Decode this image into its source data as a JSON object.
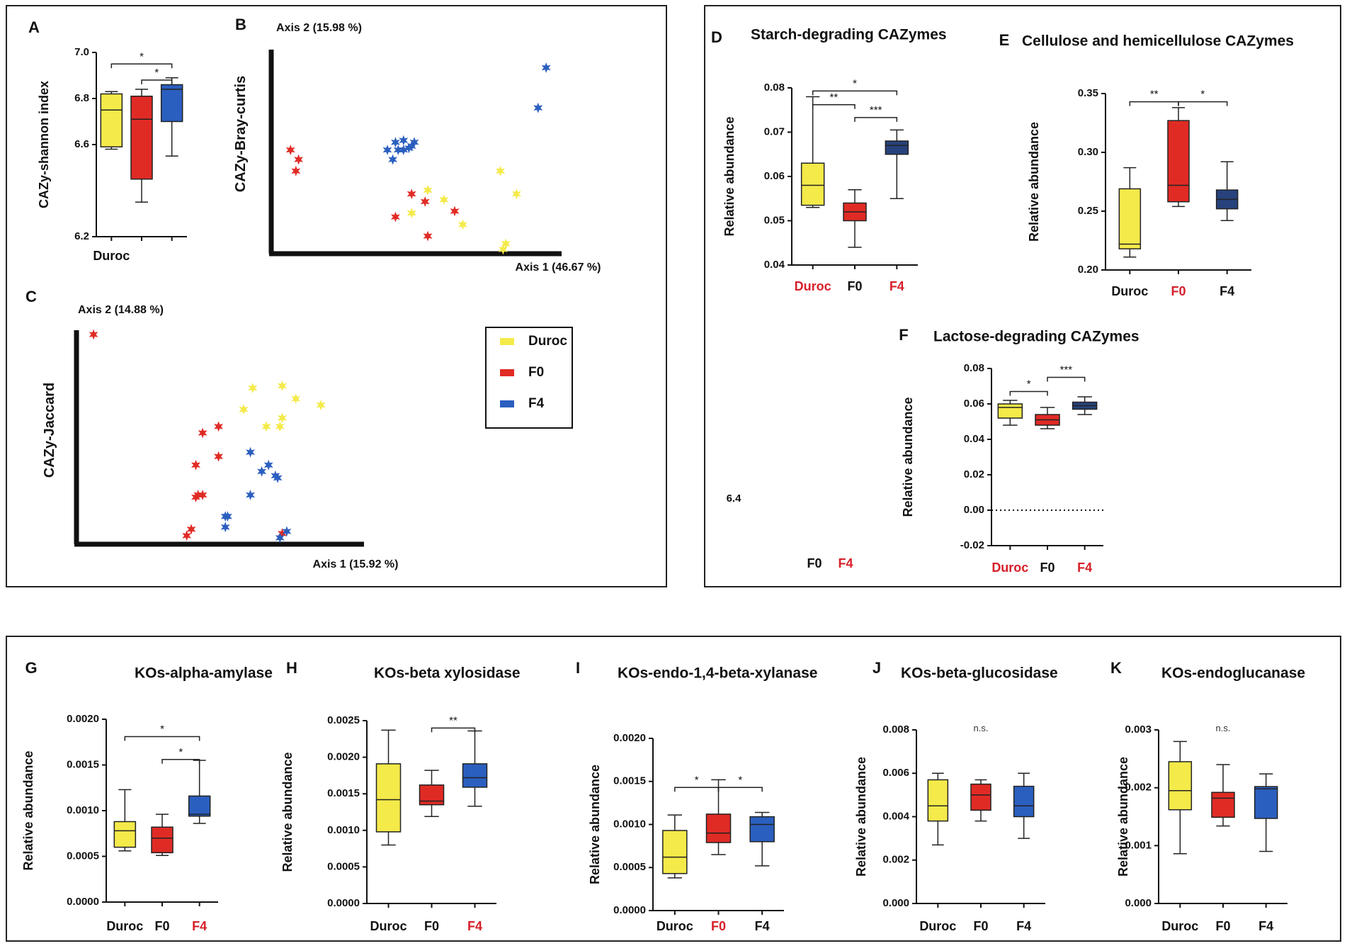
{
  "figure": {
    "group_names": [
      "Duroc",
      "F0",
      "F4"
    ],
    "colors": {
      "Duroc": "#f4ea4a",
      "F0": "#e02b25",
      "F4": "#2b5fbf",
      "F4_dark": "#27427c",
      "highlight": "#d71f2a",
      "axis": "#111111"
    },
    "stray_tick": "6.4",
    "stray_labels": [
      "F0",
      "F4"
    ]
  },
  "chart_data": [
    {
      "id": "A",
      "type": "box",
      "title": "",
      "xlabel": "",
      "ylabel": "CAZy-shannon index",
      "categories": [
        "Duroc",
        "",
        ""
      ],
      "category_colors": [
        "Duroc",
        "F0",
        "F4"
      ],
      "ylim": [
        6.2,
        7.0
      ],
      "ticks": [
        "6.2",
        "6.6",
        "6.8",
        "7.0"
      ],
      "boxes": [
        {
          "min": 6.58,
          "q1": 6.59,
          "median": 6.75,
          "q3": 6.82,
          "max": 6.83
        },
        {
          "min": 6.35,
          "q1": 6.45,
          "median": 6.71,
          "q3": 6.81,
          "max": 6.84
        },
        {
          "min": 6.55,
          "q1": 6.7,
          "median": 6.84,
          "q3": 6.86,
          "max": 6.89
        }
      ],
      "sig": [
        {
          "from": 0,
          "to": 2,
          "label": "*"
        },
        {
          "from": 1,
          "to": 2,
          "label": "*"
        }
      ]
    },
    {
      "id": "B",
      "type": "scatter",
      "ylabel": "CAZy-Bray-curtis",
      "xaxis_label": "Axis 1 (46.67 %)",
      "yaxis_label": "Axis 2 (15.98 %)",
      "xlim": [
        0,
        100
      ],
      "ylim": [
        0,
        100
      ],
      "series": [
        {
          "name": "Duroc",
          "points": [
            [
              88,
              29
            ],
            [
              82,
              41
            ],
            [
              61,
              26
            ],
            [
              55,
              31
            ],
            [
              68,
              13
            ],
            [
              49,
              19
            ],
            [
              83,
              0
            ],
            [
              84,
              3
            ]
          ]
        },
        {
          "name": "F0",
          "points": [
            [
              4,
              52
            ],
            [
              7,
              47
            ],
            [
              6,
              41
            ],
            [
              49,
              29
            ],
            [
              54,
              25
            ],
            [
              43,
              17
            ],
            [
              65,
              20
            ],
            [
              55,
              7
            ]
          ]
        },
        {
          "name": "F4",
          "points": [
            [
              40,
              52
            ],
            [
              42,
              47
            ],
            [
              43,
              56
            ],
            [
              44,
              52
            ],
            [
              46,
              52
            ],
            [
              48,
              53
            ],
            [
              49,
              54
            ],
            [
              50,
              56
            ],
            [
              46,
              57
            ],
            [
              99,
              95
            ],
            [
              96,
              74
            ]
          ]
        }
      ]
    },
    {
      "id": "C",
      "type": "scatter",
      "ylabel": "CAZy-Jaccard",
      "xaxis_label": "Axis 1 (15.92 %)",
      "yaxis_label": "Axis 2 (14.88 %)",
      "xlim": [
        0,
        100
      ],
      "ylim": [
        0,
        100
      ],
      "series": [
        {
          "name": "Duroc",
          "points": [
            [
              75,
              73
            ],
            [
              88,
              74
            ],
            [
              94,
              68
            ],
            [
              105,
              65
            ],
            [
              71,
              63
            ],
            [
              87,
              55
            ],
            [
              81,
              55
            ],
            [
              88,
              59
            ]
          ]
        },
        {
          "name": "F0",
          "points": [
            [
              5,
              98
            ],
            [
              53,
              52
            ],
            [
              60,
              55
            ],
            [
              60,
              41
            ],
            [
              50,
              37
            ],
            [
              50,
              22
            ],
            [
              51,
              23
            ],
            [
              53,
              23
            ],
            [
              48,
              7
            ],
            [
              46,
              4
            ],
            [
              88,
              5
            ]
          ]
        },
        {
          "name": "F4",
          "points": [
            [
              74,
              43
            ],
            [
              79,
              34
            ],
            [
              86,
              31
            ],
            [
              85,
              32
            ],
            [
              82,
              37
            ],
            [
              74,
              23
            ],
            [
              63,
              13
            ],
            [
              64,
              13
            ],
            [
              63,
              8
            ],
            [
              87,
              3
            ],
            [
              90,
              6
            ]
          ]
        }
      ]
    },
    {
      "id": "D",
      "type": "box",
      "title": "Starch-degrading CAZymes",
      "xlabel": "",
      "ylabel": "Relative abundance",
      "categories": [
        "Duroc",
        "F0",
        "F4"
      ],
      "category_colors": [
        "Duroc",
        "F0",
        "F4_dark"
      ],
      "highlight_labels": [
        0,
        2
      ],
      "ylim": [
        0.04,
        0.08
      ],
      "ticks": [
        "0.04",
        "0.05",
        "0.06",
        "0.07",
        "0.08"
      ],
      "boxes": [
        {
          "min": 0.053,
          "q1": 0.0535,
          "median": 0.058,
          "q3": 0.063,
          "max": 0.078
        },
        {
          "min": 0.044,
          "q1": 0.05,
          "median": 0.052,
          "q3": 0.054,
          "max": 0.057
        },
        {
          "min": 0.055,
          "q1": 0.065,
          "median": 0.067,
          "q3": 0.068,
          "max": 0.0705
        }
      ],
      "sig": [
        {
          "from": 0,
          "to": 2,
          "label": "*"
        },
        {
          "from": 0,
          "to": 1,
          "label": "**"
        },
        {
          "from": 1,
          "to": 2,
          "label": "***"
        }
      ]
    },
    {
      "id": "E",
      "type": "box",
      "title": "Cellulose and hemicellulose CAZymes",
      "xlabel": "",
      "ylabel": "Relative abundance",
      "categories": [
        "Duroc",
        "F0",
        "F4"
      ],
      "category_colors": [
        "Duroc",
        "F0",
        "F4_dark"
      ],
      "highlight_labels": [
        1
      ],
      "ylim": [
        0.2,
        0.35
      ],
      "ticks": [
        "0.20",
        "0.25",
        "0.30",
        "0.35"
      ],
      "boxes": [
        {
          "min": 0.211,
          "q1": 0.218,
          "median": 0.222,
          "q3": 0.269,
          "max": 0.287
        },
        {
          "min": 0.254,
          "q1": 0.258,
          "median": 0.272,
          "q3": 0.327,
          "max": 0.338
        },
        {
          "min": 0.242,
          "q1": 0.252,
          "median": 0.26,
          "q3": 0.268,
          "max": 0.292
        }
      ],
      "sig": [
        {
          "from": 0,
          "to": 1,
          "label": "**"
        },
        {
          "from": 1,
          "to": 2,
          "label": "*"
        }
      ]
    },
    {
      "id": "F",
      "type": "box",
      "title": "Lactose-degrading CAZymes",
      "xlabel": "",
      "ylabel": "Relative abundance",
      "categories": [
        "Duroc",
        "F0",
        "F4"
      ],
      "category_colors": [
        "Duroc",
        "F0",
        "F4_dark"
      ],
      "highlight_labels": [
        0,
        2
      ],
      "ylim": [
        -0.02,
        0.08
      ],
      "ticks": [
        "-0.02",
        "0.00",
        "0.02",
        "0.04",
        "0.06",
        "0.08"
      ],
      "zero_line": true,
      "boxes": [
        {
          "min": 0.048,
          "q1": 0.052,
          "median": 0.058,
          "q3": 0.06,
          "max": 0.062
        },
        {
          "min": 0.046,
          "q1": 0.048,
          "median": 0.051,
          "q3": 0.054,
          "max": 0.058
        },
        {
          "min": 0.054,
          "q1": 0.057,
          "median": 0.059,
          "q3": 0.061,
          "max": 0.064
        }
      ],
      "sig": [
        {
          "from": 0,
          "to": 1,
          "label": "*"
        },
        {
          "from": 1,
          "to": 2,
          "label": "***"
        }
      ]
    },
    {
      "id": "G",
      "type": "box",
      "title": "KOs-alpha-amylase",
      "xlabel": "",
      "ylabel": "Relative  abundance",
      "categories": [
        "Duroc",
        "F0",
        "F4"
      ],
      "category_colors": [
        "Duroc",
        "F0",
        "F4"
      ],
      "highlight_labels": [
        2
      ],
      "ylim": [
        0,
        0.002
      ],
      "ticks": [
        "0.0000",
        "0.0005",
        "0.0010",
        "0.0015",
        "0.0020"
      ],
      "boxes": [
        {
          "min": 0.00056,
          "q1": 0.0006,
          "median": 0.00078,
          "q3": 0.00088,
          "max": 0.00123
        },
        {
          "min": 0.00051,
          "q1": 0.00054,
          "median": 0.0007,
          "q3": 0.00082,
          "max": 0.00096
        },
        {
          "min": 0.00086,
          "q1": 0.00094,
          "median": 0.00096,
          "q3": 0.00116,
          "max": 0.00155
        }
      ],
      "sig": [
        {
          "from": 0,
          "to": 2,
          "label": "*"
        },
        {
          "from": 1,
          "to": 2,
          "label": "*"
        }
      ]
    },
    {
      "id": "H",
      "type": "box",
      "title": "KOs-beta xylosidase",
      "xlabel": "",
      "ylabel": "Relative  abundance",
      "categories": [
        "Duroc",
        "F0",
        "F4"
      ],
      "category_colors": [
        "Duroc",
        "F0",
        "F4"
      ],
      "highlight_labels": [
        2
      ],
      "ylim": [
        0,
        0.0025
      ],
      "ticks": [
        "0.0000",
        "0.0005",
        "0.0010",
        "0.0015",
        "0.0020",
        "0.0025"
      ],
      "boxes": [
        {
          "min": 0.0008,
          "q1": 0.00098,
          "median": 0.00142,
          "q3": 0.00191,
          "max": 0.00237
        },
        {
          "min": 0.00119,
          "q1": 0.00135,
          "median": 0.0014,
          "q3": 0.00162,
          "max": 0.00182
        },
        {
          "min": 0.00133,
          "q1": 0.00159,
          "median": 0.00172,
          "q3": 0.00191,
          "max": 0.00236
        }
      ],
      "sig": [
        {
          "from": 1,
          "to": 2,
          "label": "**"
        }
      ]
    },
    {
      "id": "I",
      "type": "box",
      "title": "KOs-endo-1,4-beta-xylanase",
      "xlabel": "",
      "ylabel": "Relative  abundance",
      "categories": [
        "Duroc",
        "F0",
        "F4"
      ],
      "category_colors": [
        "Duroc",
        "F0",
        "F4"
      ],
      "highlight_labels": [
        1
      ],
      "ylim": [
        0,
        0.002
      ],
      "ticks": [
        "0.0000",
        "0.0005",
        "0.0010",
        "0.0015",
        "0.0020"
      ],
      "boxes": [
        {
          "min": 0.00038,
          "q1": 0.00043,
          "median": 0.00062,
          "q3": 0.00093,
          "max": 0.00111
        },
        {
          "min": 0.00065,
          "q1": 0.00079,
          "median": 0.0009,
          "q3": 0.00112,
          "max": 0.00152
        },
        {
          "min": 0.00052,
          "q1": 0.0008,
          "median": 0.001,
          "q3": 0.00109,
          "max": 0.00114
        }
      ],
      "sig": [
        {
          "from": 0,
          "to": 1,
          "label": "*"
        },
        {
          "from": 1,
          "to": 2,
          "label": "*"
        }
      ]
    },
    {
      "id": "J",
      "type": "box",
      "title": "KOs-beta-glucosidase",
      "xlabel": "",
      "ylabel": "Relative  abundance",
      "categories": [
        "Duroc",
        "F0",
        "F4"
      ],
      "category_colors": [
        "Duroc",
        "F0",
        "F4"
      ],
      "highlight_labels": [],
      "ylim": [
        0,
        0.008
      ],
      "ticks": [
        "0.000",
        "0.002",
        "0.004",
        "0.006",
        "0.008"
      ],
      "boxes": [
        {
          "min": 0.0027,
          "q1": 0.0038,
          "median": 0.0045,
          "q3": 0.0057,
          "max": 0.006
        },
        {
          "min": 0.0038,
          "q1": 0.0043,
          "median": 0.005,
          "q3": 0.0055,
          "max": 0.0057
        },
        {
          "min": 0.003,
          "q1": 0.004,
          "median": 0.0045,
          "q3": 0.0054,
          "max": 0.006
        }
      ],
      "sig": [],
      "ns_label": "n.s."
    },
    {
      "id": "K",
      "type": "box",
      "title": "KOs-endoglucanase",
      "xlabel": "",
      "ylabel": "Relative  abundance",
      "categories": [
        "Duroc",
        "F0",
        "F4"
      ],
      "category_colors": [
        "Duroc",
        "F0",
        "F4"
      ],
      "highlight_labels": [],
      "ylim": [
        0,
        0.003
      ],
      "ticks": [
        "0.000",
        "0.001",
        "0.002",
        "0.003"
      ],
      "boxes": [
        {
          "min": 0.00086,
          "q1": 0.00162,
          "median": 0.00195,
          "q3": 0.00245,
          "max": 0.0028
        },
        {
          "min": 0.00134,
          "q1": 0.00149,
          "median": 0.00182,
          "q3": 0.00192,
          "max": 0.0024
        },
        {
          "min": 0.0009,
          "q1": 0.00147,
          "median": 0.00198,
          "q3": 0.00202,
          "max": 0.00224
        }
      ],
      "sig": [],
      "ns_label": "n.s."
    }
  ]
}
